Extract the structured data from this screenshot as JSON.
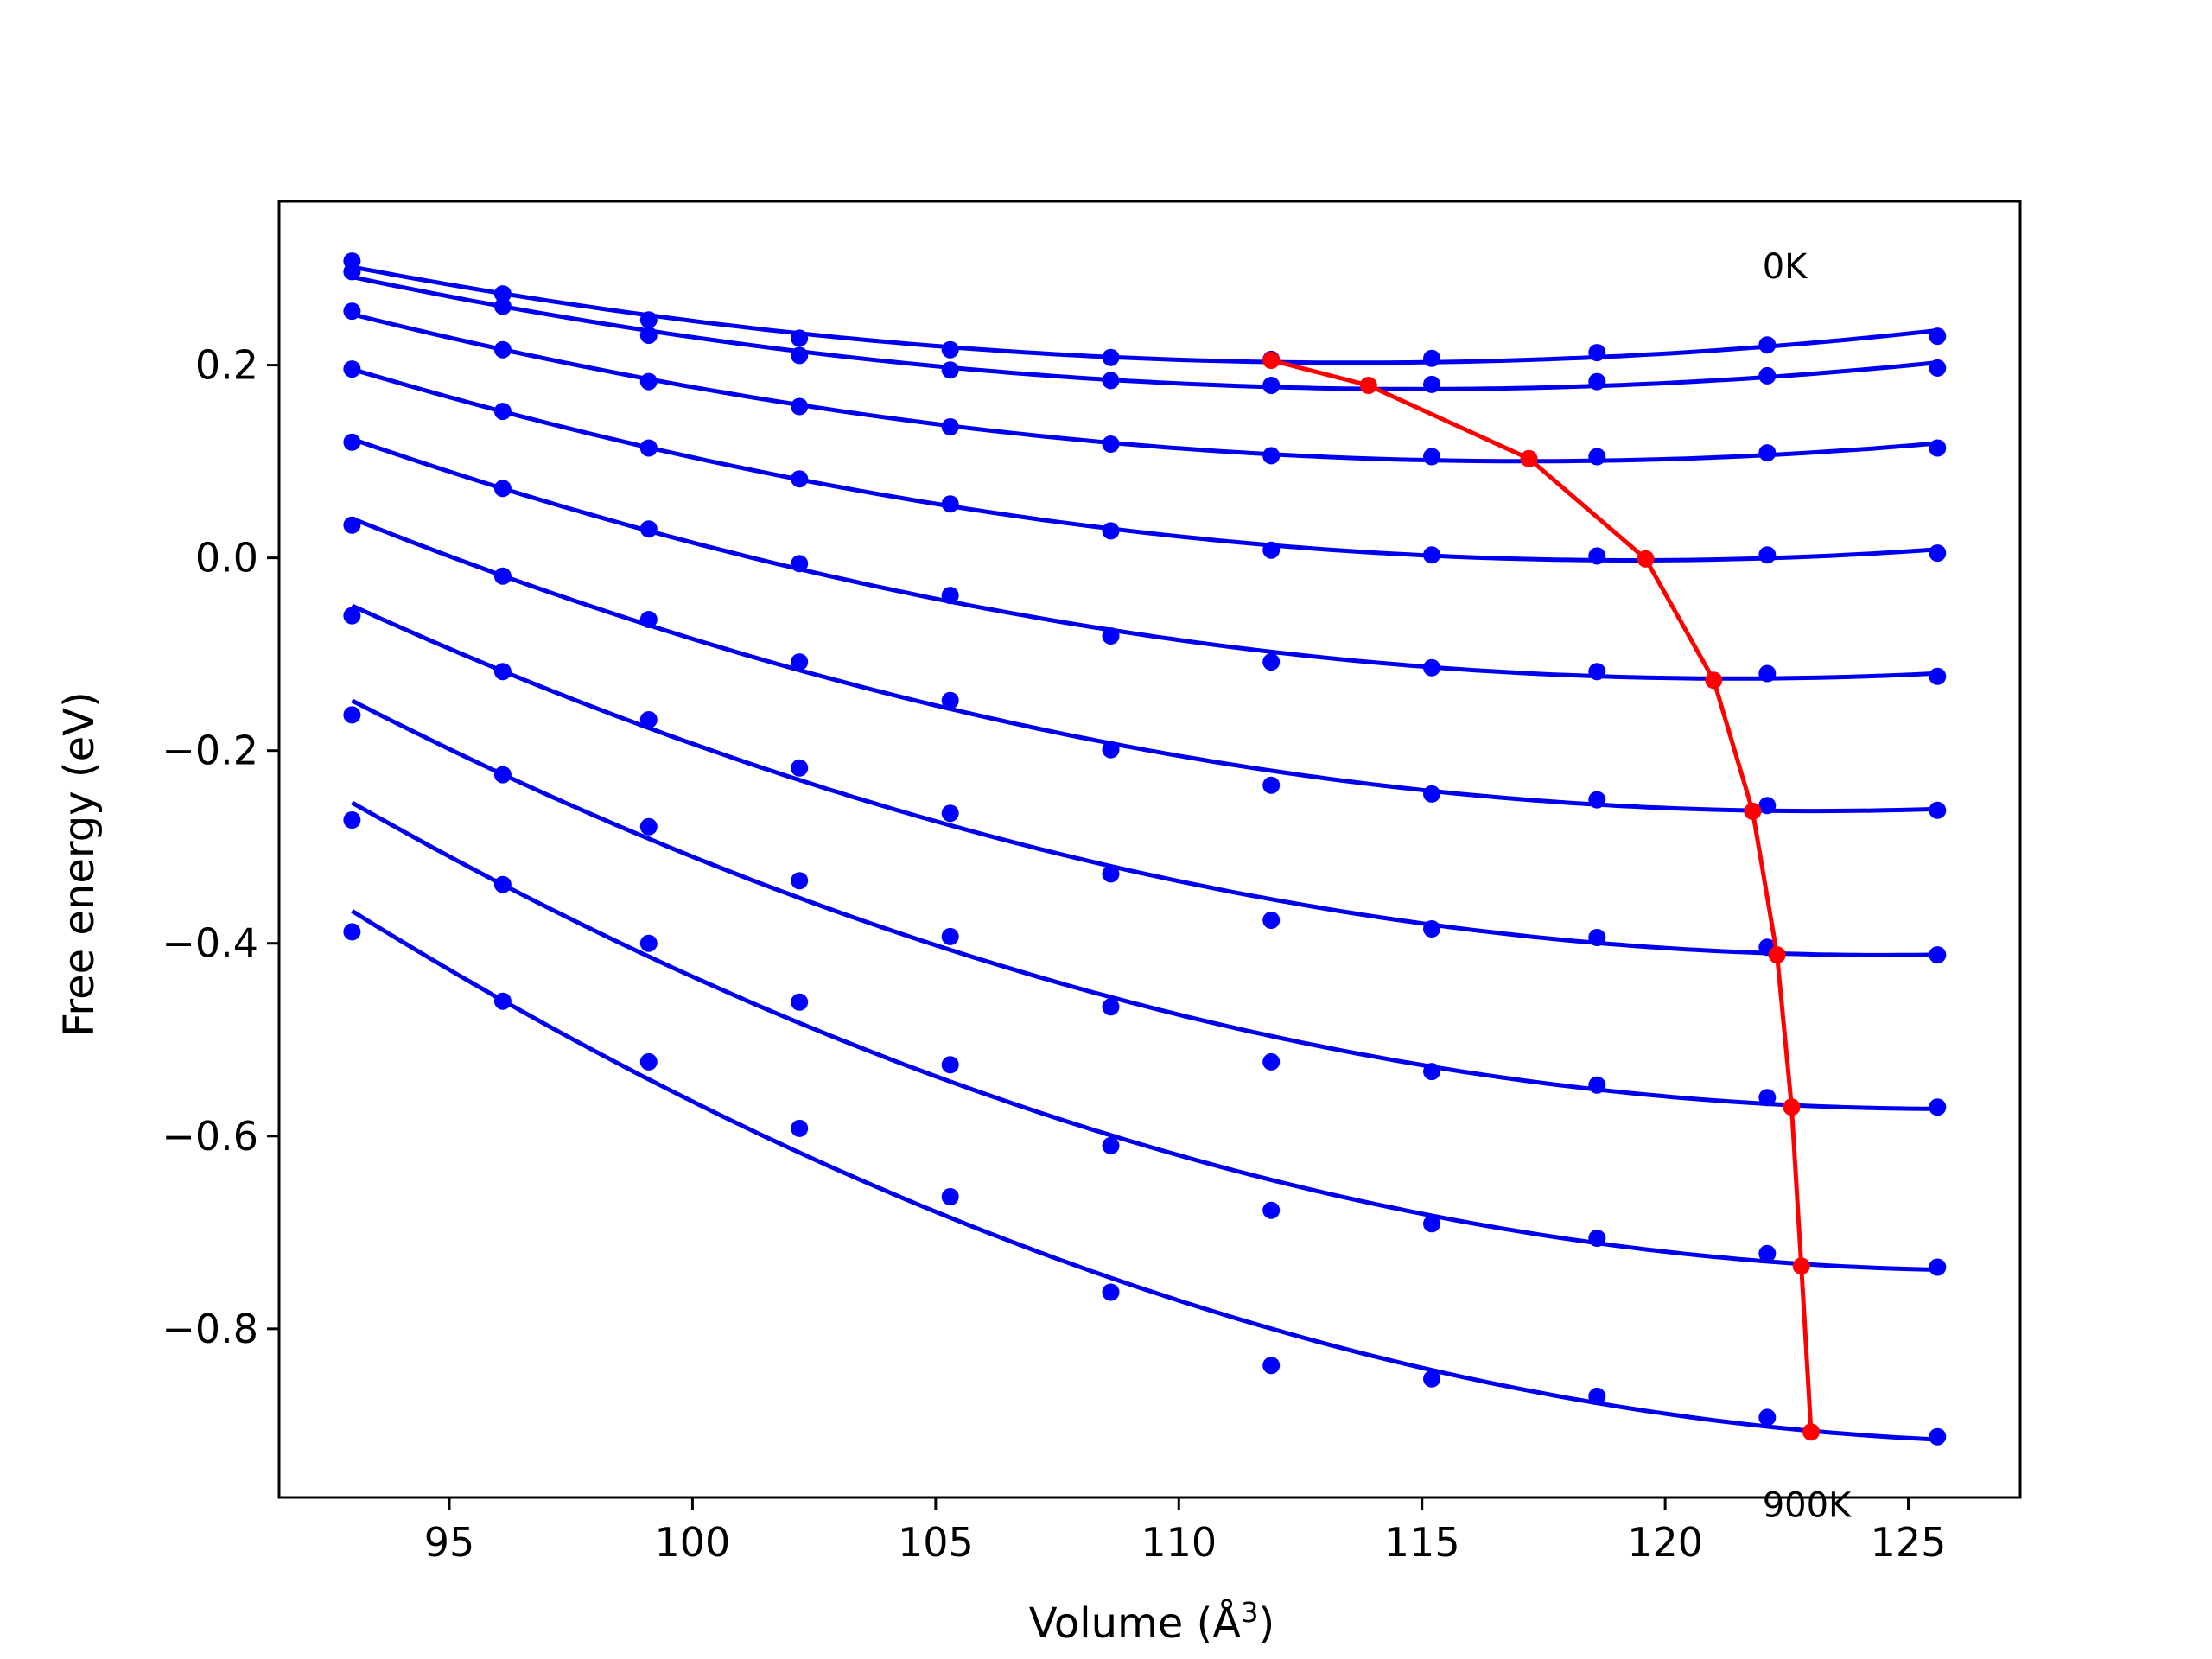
{
  "chart_data": {
    "type": "scatter",
    "xlabel": "Volume (Å",
    "xlabel_sup": "3",
    "xlabel_close": ")",
    "ylabel": "Free energy (eV)",
    "xlim": [
      91.5,
      127.3
    ],
    "ylim": [
      -0.975,
      0.37
    ],
    "xticks": [
      95,
      100,
      105,
      110,
      115,
      120,
      125
    ],
    "xtick_labels": [
      "95",
      "100",
      "105",
      "110",
      "115",
      "120",
      "125"
    ],
    "yticks": [
      0.2,
      0.0,
      -0.2,
      -0.4,
      -0.6,
      -0.8
    ],
    "ytick_labels": [
      "0.2",
      "0.0",
      "−0.2",
      "−0.4",
      "−0.6",
      "−0.8"
    ],
    "grid": false,
    "annotations": [
      {
        "text": "0K",
        "x": 122.0,
        "y": 0.29
      },
      {
        "text": "900K",
        "x": 122.0,
        "y": -0.995
      }
    ],
    "x": [
      93.0,
      96.1,
      99.1,
      102.2,
      105.3,
      108.6,
      111.9,
      115.2,
      118.6,
      122.1,
      125.6
    ],
    "series": [
      {
        "values": [
          0.308,
          0.274,
          0.247,
          0.228,
          0.216,
          0.208,
          0.206,
          0.207,
          0.213,
          0.221,
          0.23
        ],
        "color": "#0000ee"
      },
      {
        "values": [
          0.297,
          0.261,
          0.231,
          0.21,
          0.195,
          0.184,
          0.179,
          0.18,
          0.183,
          0.189,
          0.197
        ],
        "color": "#0000ee"
      },
      {
        "values": [
          0.256,
          0.216,
          0.183,
          0.157,
          0.136,
          0.118,
          0.106,
          0.105,
          0.105,
          0.109,
          0.114
        ],
        "color": "#0000ee"
      },
      {
        "values": [
          0.196,
          0.152,
          0.114,
          0.082,
          0.056,
          0.028,
          0.008,
          0.003,
          0.002,
          0.003,
          0.005
        ],
        "color": "#0000ee"
      },
      {
        "values": [
          0.12,
          0.072,
          0.03,
          -0.006,
          -0.039,
          -0.081,
          -0.108,
          -0.114,
          -0.118,
          -0.12,
          -0.123
        ],
        "color": "#0000ee"
      },
      {
        "values": [
          0.034,
          -0.019,
          -0.064,
          -0.108,
          -0.148,
          -0.199,
          -0.236,
          -0.245,
          -0.251,
          -0.257,
          -0.262
        ],
        "color": "#0000ee"
      },
      {
        "values": [
          -0.06,
          -0.118,
          -0.168,
          -0.218,
          -0.265,
          -0.328,
          -0.376,
          -0.385,
          -0.394,
          -0.404,
          -0.412
        ],
        "color": "#0000ee"
      },
      {
        "values": [
          -0.163,
          -0.225,
          -0.279,
          -0.335,
          -0.393,
          -0.466,
          -0.523,
          -0.533,
          -0.547,
          -0.56,
          -0.57
        ],
        "color": "#0000ee"
      },
      {
        "values": [
          -0.272,
          -0.339,
          -0.4,
          -0.461,
          -0.526,
          -0.61,
          -0.677,
          -0.691,
          -0.706,
          -0.722,
          -0.736
        ],
        "color": "#0000ee"
      },
      {
        "values": [
          -0.388,
          -0.46,
          -0.523,
          -0.592,
          -0.663,
          -0.762,
          -0.838,
          -0.852,
          -0.87,
          -0.892,
          -0.912
        ],
        "color": "#0000ee"
      }
    ],
    "equilibrium": {
      "x": [
        111.9,
        113.9,
        117.2,
        119.6,
        121.0,
        121.8,
        122.3,
        122.6,
        122.8,
        123.0
      ],
      "y": [
        0.205,
        0.179,
        0.103,
        -0.001,
        -0.127,
        -0.263,
        -0.412,
        -0.57,
        -0.735,
        -0.907
      ],
      "color": "#ff0000"
    },
    "series_color": "#0000ee",
    "point_color": "#0000ff"
  }
}
